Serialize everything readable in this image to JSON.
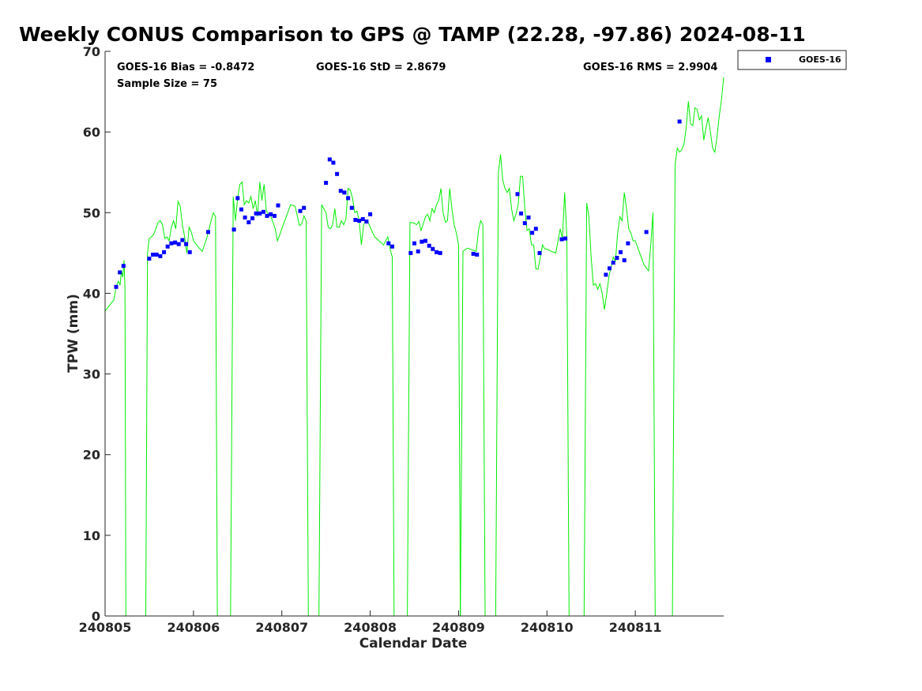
{
  "chart_data": {
    "type": "scatter",
    "title": "Weekly CONUS Comparison to GPS @ TAMP (22.28, -97.86) 2024-08-11",
    "xlabel": "Calendar Date",
    "ylabel": "TPW (mm)",
    "xlim": [
      0,
      7
    ],
    "ylim": [
      0,
      70
    ],
    "x_ticks": [
      0,
      1,
      2,
      3,
      4,
      5,
      6
    ],
    "x_tick_labels": [
      "240805",
      "240806",
      "240807",
      "240808",
      "240809",
      "240810",
      "240811"
    ],
    "y_ticks": [
      0,
      10,
      20,
      30,
      40,
      50,
      60,
      70
    ],
    "y_tick_labels": [
      "0",
      "10",
      "20",
      "30",
      "40",
      "50",
      "60",
      "70"
    ],
    "grid": false,
    "legend_position": "outside-top-right",
    "stats": {
      "bias": "GOES-16 Bias = -0.8472",
      "std": "GOES-16 StD = 2.8679",
      "rms": "GOES-16 RMS = 2.9904",
      "sample": "Sample Size = 75"
    },
    "series": [
      {
        "name": "GOES-16",
        "kind": "scatter",
        "color": "#0000ff",
        "x": [
          0.125,
          0.167,
          0.208,
          0.5,
          0.542,
          0.583,
          0.625,
          0.667,
          0.708,
          0.75,
          0.792,
          0.833,
          0.875,
          0.917,
          0.958,
          1.167,
          1.458,
          1.5,
          1.542,
          1.583,
          1.625,
          1.667,
          1.708,
          1.75,
          1.792,
          1.833,
          1.875,
          1.917,
          1.958,
          2.208,
          2.25,
          2.5,
          2.542,
          2.583,
          2.625,
          2.667,
          2.708,
          2.75,
          2.792,
          2.833,
          2.875,
          2.917,
          2.958,
          3.0,
          3.208,
          3.25,
          3.458,
          3.5,
          3.542,
          3.583,
          3.625,
          3.667,
          3.708,
          3.75,
          3.792,
          4.167,
          4.208,
          4.667,
          4.708,
          4.75,
          4.792,
          4.833,
          4.875,
          4.917,
          5.167,
          5.208,
          5.667,
          5.708,
          5.75,
          5.792,
          5.833,
          5.875,
          5.917,
          6.125,
          6.5
        ],
        "y": [
          40.8,
          42.6,
          43.4,
          44.3,
          44.8,
          44.8,
          44.6,
          45.1,
          45.8,
          46.2,
          46.3,
          46.1,
          46.6,
          46.1,
          45.1,
          47.6,
          47.9,
          51.8,
          50.4,
          49.4,
          48.8,
          49.3,
          49.9,
          49.9,
          50.1,
          49.6,
          49.8,
          49.6,
          50.9,
          50.2,
          50.6,
          53.7,
          56.6,
          56.2,
          54.8,
          52.7,
          52.5,
          51.8,
          50.6,
          49.1,
          49.0,
          49.2,
          48.9,
          49.8,
          46.2,
          45.8,
          45.0,
          46.2,
          45.2,
          46.4,
          46.5,
          45.9,
          45.5,
          45.1,
          45.0,
          44.9,
          44.8,
          52.3,
          49.9,
          48.7,
          49.4,
          47.5,
          48.0,
          45.0,
          46.7,
          46.8,
          42.3,
          43.1,
          43.8,
          44.4,
          45.1,
          44.1,
          46.2,
          47.6,
          61.3
        ]
      },
      {
        "name": "GPS",
        "kind": "line",
        "color": "#00ee00",
        "segments": [
          {
            "x": [
              0.0,
              0.05,
              0.1,
              0.125,
              0.15,
              0.17,
              0.185,
              0.2,
              0.215,
              0.225,
              0.235
            ],
            "y": [
              37.8,
              38.5,
              39.2,
              40.8,
              41.5,
              41.0,
              42.8,
              42.0,
              44.1,
              40.5,
              0
            ]
          },
          {
            "x": [
              0.46,
              0.48,
              0.5,
              0.525,
              0.55,
              0.575,
              0.6,
              0.625,
              0.65,
              0.675,
              0.7,
              0.725,
              0.75,
              0.775,
              0.8,
              0.825,
              0.85,
              0.875,
              0.9,
              0.925,
              0.95,
              0.975,
              1.0,
              1.05,
              1.1,
              1.15,
              1.2,
              1.225,
              1.25,
              1.27
            ],
            "y": [
              0,
              45.0,
              46.8,
              47.0,
              47.3,
              48.0,
              48.8,
              49.0,
              48.5,
              46.8,
              47.0,
              46.5,
              48.2,
              49.0,
              48.0,
              51.4,
              50.8,
              48.5,
              47.0,
              45.0,
              48.2,
              47.6,
              46.5,
              45.8,
              45.2,
              46.8,
              49.0,
              50.0,
              49.5,
              0
            ]
          },
          {
            "x": [
              1.42,
              1.45,
              1.475,
              1.5,
              1.525,
              1.55,
              1.575,
              1.6,
              1.625,
              1.65,
              1.675,
              1.7,
              1.725,
              1.75,
              1.775,
              1.8,
              1.825,
              1.85,
              1.875,
              1.9,
              1.925,
              1.95,
              1.975,
              2.0,
              2.05,
              2.1,
              2.15,
              2.2,
              2.225,
              2.25,
              2.275,
              2.3,
              2.325
            ],
            "y": [
              0,
              52.0,
              49.0,
              51.8,
              53.5,
              53.8,
              51.0,
              51.5,
              51.2,
              52.0,
              50.5,
              51.5,
              49.5,
              53.8,
              51.5,
              53.5,
              50.2,
              49.8,
              49.6,
              48.8,
              48.0,
              46.5,
              47.2,
              48.0,
              49.5,
              51.0,
              50.8,
              48.4,
              48.6,
              49.6,
              49.0,
              0,
              0
            ]
          },
          {
            "x": [
              2.42,
              2.45,
              2.5,
              2.525,
              2.55,
              2.575,
              2.6,
              2.625,
              2.65,
              2.675,
              2.7,
              2.725,
              2.75,
              2.775,
              2.8,
              2.825,
              2.85,
              2.875,
              2.9,
              2.925,
              2.95,
              2.975,
              3.0,
              3.05,
              3.1,
              3.15,
              3.2,
              3.225,
              3.25,
              3.27
            ],
            "y": [
              0,
              51.0,
              50.0,
              48.2,
              48.0,
              48.5,
              50.5,
              48.2,
              48.2,
              49.0,
              48.5,
              49.2,
              53.0,
              52.8,
              51.8,
              50.0,
              50.2,
              49.0,
              46.0,
              48.5,
              49.0,
              48.8,
              48.2,
              47.0,
              46.5,
              46.0,
              47.0,
              45.5,
              44.5,
              0
            ]
          },
          {
            "x": [
              3.42,
              3.45,
              3.5,
              3.525,
              3.55,
              3.575,
              3.6,
              3.625,
              3.65,
              3.675,
              3.7,
              3.725,
              3.75,
              3.775,
              3.8,
              3.825,
              3.85,
              3.875,
              3.9,
              3.925,
              3.95,
              3.975,
              4.0,
              4.02
            ],
            "y": [
              0,
              48.8,
              48.7,
              48.5,
              48.9,
              47.8,
              48.6,
              49.5,
              49.8,
              49.0,
              50.5,
              50.0,
              51.0,
              51.5,
              53.0,
              50.0,
              48.8,
              49.0,
              53.0,
              50.5,
              48.5,
              47.5,
              46.0,
              0
            ]
          },
          {
            "x": [
              4.02,
              4.05,
              4.1,
              4.15,
              4.2,
              4.225,
              4.25,
              4.275,
              4.3
            ],
            "y": [
              0,
              45.2,
              45.6,
              45.4,
              45.2,
              47.8,
              49.0,
              48.5,
              0
            ]
          },
          {
            "x": [
              4.42,
              4.45,
              4.475,
              4.5,
              4.525,
              4.55,
              4.575,
              4.6,
              4.625,
              4.65,
              4.675,
              4.7,
              4.725,
              4.75,
              4.775,
              4.8,
              4.825,
              4.85,
              4.875,
              4.9,
              4.925,
              4.95,
              4.975,
              5.0,
              5.05,
              5.1,
              5.15,
              5.175,
              5.2,
              5.225,
              5.25
            ],
            "y": [
              0,
              55.0,
              57.2,
              54.0,
              53.0,
              52.5,
              53.0,
              50.5,
              49.0,
              49.8,
              51.0,
              54.5,
              54.5,
              50.5,
              47.8,
              48.0,
              46.0,
              46.0,
              43.0,
              43.0,
              44.5,
              46.0,
              45.5,
              45.5,
              45.2,
              45.0,
              48.0,
              46.8,
              52.5,
              47.0,
              0
            ]
          },
          {
            "x": [
              5.42,
              5.45,
              5.475,
              5.5,
              5.525,
              5.55,
              5.575,
              5.6,
              5.625,
              5.65,
              5.675,
              5.7,
              5.725,
              5.75,
              5.775,
              5.8,
              5.825,
              5.85,
              5.875,
              5.9,
              5.925,
              5.95,
              5.975,
              6.0,
              6.05,
              6.1,
              6.15,
              6.175,
              6.2,
              6.225
            ],
            "y": [
              0,
              51.2,
              49.5,
              44.5,
              41.0,
              41.2,
              40.5,
              41.2,
              40.0,
              38.0,
              39.8,
              42.0,
              43.2,
              44.5,
              44.0,
              47.5,
              49.5,
              49.0,
              52.5,
              50.5,
              48.0,
              47.5,
              46.5,
              46.5,
              45.0,
              43.5,
              42.8,
              46.0,
              50.0,
              0
            ]
          },
          {
            "x": [
              6.42,
              6.45,
              6.475,
              6.5,
              6.525,
              6.55,
              6.575,
              6.6,
              6.625,
              6.65,
              6.675,
              6.7,
              6.725,
              6.75,
              6.775,
              6.8,
              6.825,
              6.85,
              6.875,
              6.9,
              6.925,
              6.95,
              6.975,
              7.0
            ],
            "y": [
              0,
              56.0,
              58.0,
              57.5,
              57.8,
              58.5,
              60.5,
              63.8,
              61.0,
              60.8,
              63.0,
              62.8,
              61.5,
              62.0,
              59.0,
              60.5,
              61.8,
              60.0,
              58.0,
              57.5,
              59.5,
              62.0,
              64.0,
              66.8
            ]
          }
        ]
      }
    ]
  }
}
